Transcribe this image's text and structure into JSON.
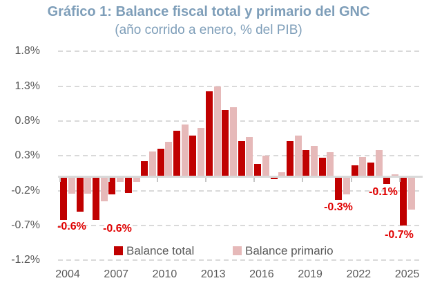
{
  "title": "Gráfico 1: Balance fiscal total y primario del GNC",
  "subtitle": "(año corrido a enero, % del PIB)",
  "colors": {
    "title": "#7E9EB9",
    "balance_total": "#C00000",
    "balance_primario": "#E6B9B9",
    "data_label": "#E00000",
    "axis_text": "#595959",
    "gridline": "#D9D9D9"
  },
  "chart_data": {
    "type": "bar",
    "title": "Gráfico 1: Balance fiscal total y primario del GNC",
    "subtitle": "(año corrido a enero, % del PIB)",
    "xlabel": "",
    "ylabel": "",
    "categories": [
      2004,
      2005,
      2006,
      2007,
      2008,
      2009,
      2010,
      2011,
      2012,
      2013,
      2014,
      2015,
      2016,
      2017,
      2018,
      2019,
      2020,
      2021,
      2022,
      2023,
      2024,
      2025
    ],
    "series": [
      {
        "name": "Balance total",
        "values": [
          -0.62,
          -0.5,
          -0.62,
          -0.25,
          -0.23,
          0.22,
          0.4,
          0.66,
          0.59,
          1.23,
          0.96,
          0.51,
          0.18,
          -0.03,
          0.51,
          0.38,
          0.27,
          -0.33,
          0.16,
          0.2,
          -0.1,
          -0.7
        ]
      },
      {
        "name": "Balance primario",
        "values": [
          -0.24,
          -0.24,
          -0.35,
          -0.07,
          -0.07,
          0.36,
          0.5,
          0.75,
          0.7,
          1.3,
          1.0,
          0.57,
          0.3,
          0.06,
          0.59,
          0.44,
          0.35,
          -0.25,
          0.28,
          0.38,
          0.03,
          -0.47
        ]
      }
    ],
    "ylim": [
      -1.2,
      1.8
    ],
    "yticks": [
      1.8,
      1.3,
      0.8,
      0.3,
      -0.2,
      -0.7,
      -1.2
    ],
    "ytick_labels": [
      "1.8%",
      "1.3%",
      "0.8%",
      "0.3%",
      "-0.2%",
      "-0.7%",
      "-1.2%"
    ],
    "xtick_labels": [
      "2004",
      "2007",
      "2010",
      "2013",
      "2016",
      "2019",
      "2022",
      "2025"
    ],
    "grid": "horizontal-dashed",
    "legend_position": "bottom",
    "data_labels": [
      {
        "category": 2004,
        "series": "Balance total",
        "text": "-0.6%"
      },
      {
        "category": 2006,
        "series": "Balance total",
        "text": "-0.6%"
      },
      {
        "category": 2021,
        "series": "Balance total",
        "text": "-0.3%"
      },
      {
        "category": 2024,
        "series": "Balance total",
        "text": "-0.1%"
      },
      {
        "category": 2025,
        "series": "Balance total",
        "text": "-0.7%"
      }
    ]
  }
}
